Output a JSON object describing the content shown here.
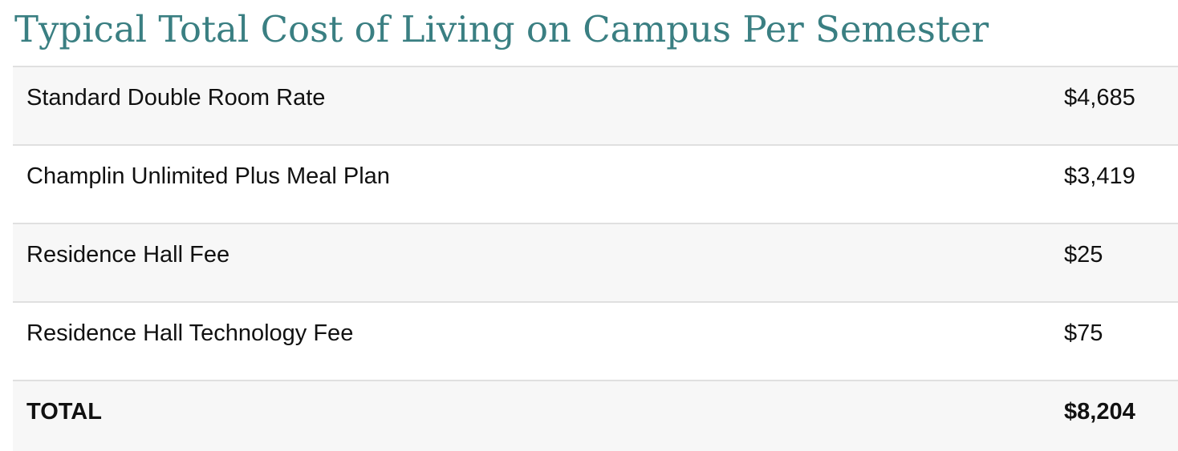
{
  "title": "Typical Total Cost of Living on Campus Per Semester",
  "rows": [
    {
      "label": "Standard Double Room Rate",
      "amount": "$4,685"
    },
    {
      "label": "Champlin Unlimited Plus Meal Plan",
      "amount": "$3,419"
    },
    {
      "label": "Residence Hall Fee",
      "amount": "$25"
    },
    {
      "label": "Residence Hall Technology Fee",
      "amount": "$75"
    }
  ],
  "total": {
    "label": "TOTAL",
    "amount": "$8,204"
  },
  "colors": {
    "title": "#3a7f82",
    "shaded_row": "#f7f7f7",
    "divider": "#e0e0e0",
    "text": "#111111"
  }
}
